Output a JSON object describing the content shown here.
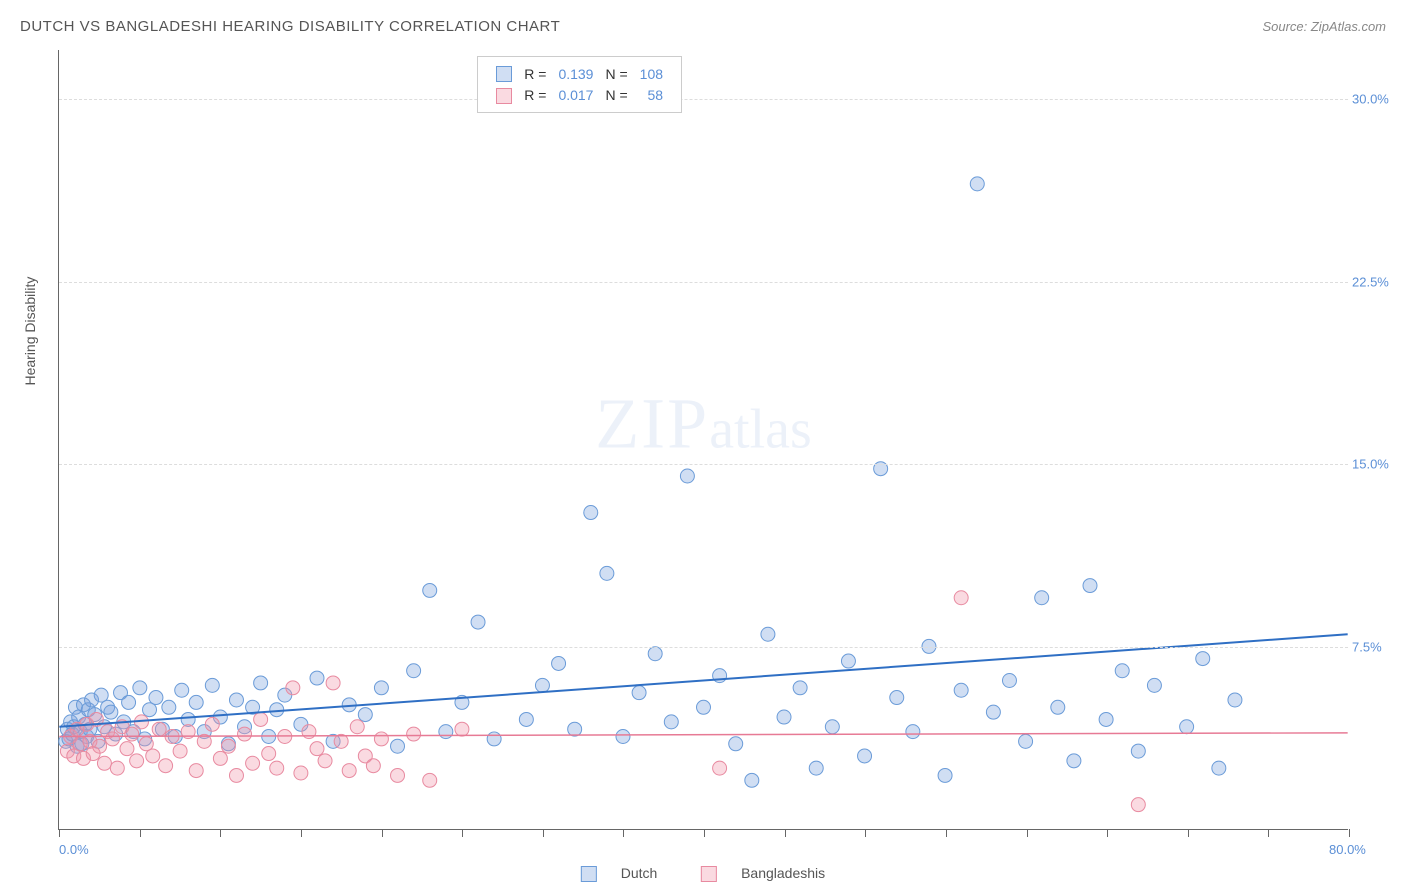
{
  "title": "DUTCH VS BANGLADESHI HEARING DISABILITY CORRELATION CHART",
  "source": "Source: ZipAtlas.com",
  "watermark_zip": "ZIP",
  "watermark_atlas": "atlas",
  "y_axis_title": "Hearing Disability",
  "chart": {
    "type": "scatter",
    "xlim": [
      0,
      80
    ],
    "ylim": [
      0,
      32
    ],
    "x_ticks": [
      0,
      5,
      10,
      15,
      20,
      25,
      30,
      35,
      40,
      45,
      50,
      55,
      60,
      65,
      70,
      75,
      80
    ],
    "x_tick_labels": {
      "0": "0.0%",
      "80": "80.0%"
    },
    "y_gridlines": [
      7.5,
      15.0,
      22.5,
      30.0
    ],
    "y_tick_labels": [
      "7.5%",
      "15.0%",
      "22.5%",
      "30.0%"
    ],
    "background_color": "#ffffff",
    "grid_color": "#dddddd",
    "axis_color": "#666666",
    "tick_label_color": "#5b8fd6",
    "marker_radius": 7,
    "marker_stroke_width": 1,
    "series": [
      {
        "name": "Dutch",
        "fill": "rgba(120,160,220,0.35)",
        "stroke": "#6a9bd8",
        "R": "0.139",
        "N": "108",
        "trend": {
          "y_at_x0": 4.2,
          "y_at_xmax": 8.0,
          "stroke": "#2f6fc4",
          "width": 2
        },
        "points": [
          [
            0.4,
            3.6
          ],
          [
            0.5,
            4.1
          ],
          [
            0.6,
            3.7
          ],
          [
            0.7,
            4.4
          ],
          [
            0.8,
            3.9
          ],
          [
            0.9,
            4.2
          ],
          [
            1.0,
            5.0
          ],
          [
            1.1,
            3.4
          ],
          [
            1.2,
            4.6
          ],
          [
            1.3,
            4.0
          ],
          [
            1.4,
            3.5
          ],
          [
            1.5,
            5.1
          ],
          [
            1.6,
            4.3
          ],
          [
            1.7,
            3.8
          ],
          [
            1.8,
            4.9
          ],
          [
            1.9,
            4.1
          ],
          [
            2.0,
            5.3
          ],
          [
            2.2,
            4.7
          ],
          [
            2.4,
            3.6
          ],
          [
            2.6,
            5.5
          ],
          [
            2.8,
            4.2
          ],
          [
            3.0,
            5.0
          ],
          [
            3.2,
            4.8
          ],
          [
            3.5,
            3.9
          ],
          [
            3.8,
            5.6
          ],
          [
            4.0,
            4.4
          ],
          [
            4.3,
            5.2
          ],
          [
            4.6,
            4.0
          ],
          [
            5.0,
            5.8
          ],
          [
            5.3,
            3.7
          ],
          [
            5.6,
            4.9
          ],
          [
            6.0,
            5.4
          ],
          [
            6.4,
            4.1
          ],
          [
            6.8,
            5.0
          ],
          [
            7.2,
            3.8
          ],
          [
            7.6,
            5.7
          ],
          [
            8.0,
            4.5
          ],
          [
            8.5,
            5.2
          ],
          [
            9.0,
            4.0
          ],
          [
            9.5,
            5.9
          ],
          [
            10.0,
            4.6
          ],
          [
            10.5,
            3.5
          ],
          [
            11.0,
            5.3
          ],
          [
            11.5,
            4.2
          ],
          [
            12.0,
            5.0
          ],
          [
            12.5,
            6.0
          ],
          [
            13.0,
            3.8
          ],
          [
            13.5,
            4.9
          ],
          [
            14,
            5.5
          ],
          [
            15,
            4.3
          ],
          [
            16,
            6.2
          ],
          [
            17,
            3.6
          ],
          [
            18,
            5.1
          ],
          [
            19,
            4.7
          ],
          [
            20,
            5.8
          ],
          [
            21,
            3.4
          ],
          [
            22,
            6.5
          ],
          [
            23,
            9.8
          ],
          [
            24,
            4.0
          ],
          [
            25,
            5.2
          ],
          [
            26,
            8.5
          ],
          [
            27,
            3.7
          ],
          [
            28,
            30.5
          ],
          [
            29,
            4.5
          ],
          [
            30,
            5.9
          ],
          [
            31,
            6.8
          ],
          [
            32,
            4.1
          ],
          [
            33,
            13.0
          ],
          [
            34,
            10.5
          ],
          [
            35,
            3.8
          ],
          [
            36,
            5.6
          ],
          [
            37,
            7.2
          ],
          [
            38,
            4.4
          ],
          [
            39,
            14.5
          ],
          [
            40,
            5.0
          ],
          [
            41,
            6.3
          ],
          [
            42,
            3.5
          ],
          [
            43,
            2.0
          ],
          [
            44,
            8.0
          ],
          [
            45,
            4.6
          ],
          [
            46,
            5.8
          ],
          [
            47,
            2.5
          ],
          [
            48,
            4.2
          ],
          [
            49,
            6.9
          ],
          [
            50,
            3.0
          ],
          [
            51,
            14.8
          ],
          [
            52,
            5.4
          ],
          [
            53,
            4.0
          ],
          [
            54,
            7.5
          ],
          [
            55,
            2.2
          ],
          [
            56,
            5.7
          ],
          [
            57,
            26.5
          ],
          [
            58,
            4.8
          ],
          [
            59,
            6.1
          ],
          [
            60,
            3.6
          ],
          [
            61,
            9.5
          ],
          [
            62,
            5.0
          ],
          [
            63,
            2.8
          ],
          [
            64,
            10.0
          ],
          [
            65,
            4.5
          ],
          [
            66,
            6.5
          ],
          [
            67,
            3.2
          ],
          [
            68,
            5.9
          ],
          [
            70,
            4.2
          ],
          [
            71,
            7.0
          ],
          [
            72,
            2.5
          ],
          [
            73,
            5.3
          ]
        ]
      },
      {
        "name": "Bangladeshis",
        "fill": "rgba(240,150,170,0.35)",
        "stroke": "#e88aa0",
        "R": "0.017",
        "N": "58",
        "trend": {
          "y_at_x0": 3.8,
          "y_at_xmax": 3.95,
          "stroke": "#e77a95",
          "width": 1.5
        },
        "points": [
          [
            0.5,
            3.2
          ],
          [
            0.7,
            3.8
          ],
          [
            0.9,
            3.0
          ],
          [
            1.1,
            4.1
          ],
          [
            1.3,
            3.5
          ],
          [
            1.5,
            2.9
          ],
          [
            1.7,
            4.3
          ],
          [
            1.9,
            3.6
          ],
          [
            2.1,
            3.1
          ],
          [
            2.3,
            4.5
          ],
          [
            2.5,
            3.4
          ],
          [
            2.8,
            2.7
          ],
          [
            3.0,
            4.0
          ],
          [
            3.3,
            3.7
          ],
          [
            3.6,
            2.5
          ],
          [
            3.9,
            4.2
          ],
          [
            4.2,
            3.3
          ],
          [
            4.5,
            3.9
          ],
          [
            4.8,
            2.8
          ],
          [
            5.1,
            4.4
          ],
          [
            5.4,
            3.5
          ],
          [
            5.8,
            3.0
          ],
          [
            6.2,
            4.1
          ],
          [
            6.6,
            2.6
          ],
          [
            7.0,
            3.8
          ],
          [
            7.5,
            3.2
          ],
          [
            8.0,
            4.0
          ],
          [
            8.5,
            2.4
          ],
          [
            9.0,
            3.6
          ],
          [
            9.5,
            4.3
          ],
          [
            10.0,
            2.9
          ],
          [
            10.5,
            3.4
          ],
          [
            11.0,
            2.2
          ],
          [
            11.5,
            3.9
          ],
          [
            12.0,
            2.7
          ],
          [
            12.5,
            4.5
          ],
          [
            13.0,
            3.1
          ],
          [
            13.5,
            2.5
          ],
          [
            14.0,
            3.8
          ],
          [
            14.5,
            5.8
          ],
          [
            15.0,
            2.3
          ],
          [
            15.5,
            4.0
          ],
          [
            16.0,
            3.3
          ],
          [
            16.5,
            2.8
          ],
          [
            17.0,
            6.0
          ],
          [
            17.5,
            3.6
          ],
          [
            18.0,
            2.4
          ],
          [
            18.5,
            4.2
          ],
          [
            19.0,
            3.0
          ],
          [
            19.5,
            2.6
          ],
          [
            20.0,
            3.7
          ],
          [
            21.0,
            2.2
          ],
          [
            22.0,
            3.9
          ],
          [
            23.0,
            2.0
          ],
          [
            25.0,
            4.1
          ],
          [
            41.0,
            2.5
          ],
          [
            56.0,
            9.5
          ],
          [
            67.0,
            1.0
          ]
        ]
      }
    ]
  },
  "legend": {
    "R_label": "R =",
    "N_label": "N ="
  },
  "bottom_legend": {
    "series1": "Dutch",
    "series2": "Bangladeshis"
  }
}
